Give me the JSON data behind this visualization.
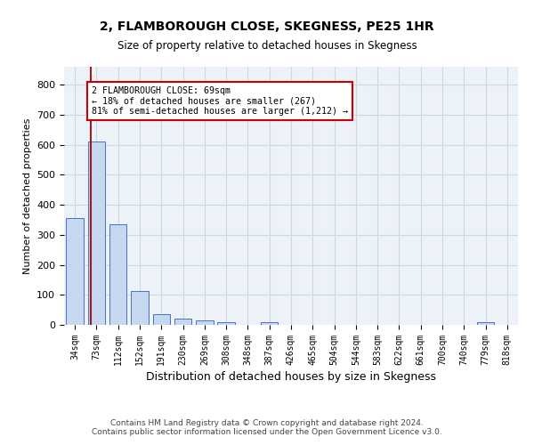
{
  "title": "2, FLAMBOROUGH CLOSE, SKEGNESS, PE25 1HR",
  "subtitle": "Size of property relative to detached houses in Skegness",
  "xlabel": "Distribution of detached houses by size in Skegness",
  "ylabel": "Number of detached properties",
  "categories": [
    "34sqm",
    "73sqm",
    "112sqm",
    "152sqm",
    "191sqm",
    "230sqm",
    "269sqm",
    "308sqm",
    "348sqm",
    "387sqm",
    "426sqm",
    "465sqm",
    "504sqm",
    "544sqm",
    "583sqm",
    "622sqm",
    "661sqm",
    "700sqm",
    "740sqm",
    "779sqm",
    "818sqm"
  ],
  "values": [
    357,
    611,
    335,
    114,
    35,
    20,
    15,
    10,
    0,
    8,
    0,
    0,
    0,
    0,
    0,
    0,
    0,
    0,
    0,
    8,
    0
  ],
  "bar_color": "#c5d8f0",
  "bar_edge_color": "#4472c4",
  "grid_color": "#ccd6e8",
  "background_color": "#edf2f9",
  "property_label": "2 FLAMBOROUGH CLOSE: 69sqm",
  "annotation_line1": "← 18% of detached houses are smaller (267)",
  "annotation_line2": "81% of semi-detached houses are larger (1,212) →",
  "red_line_color": "#9b1c1c",
  "annotation_box_color": "#cc0000",
  "ylim": [
    0,
    860
  ],
  "yticks": [
    0,
    100,
    200,
    300,
    400,
    500,
    600,
    700,
    800
  ],
  "footer_line1": "Contains HM Land Registry data © Crown copyright and database right 2024.",
  "footer_line2": "Contains public sector information licensed under the Open Government Licence v3.0.",
  "red_line_x": 0.72
}
